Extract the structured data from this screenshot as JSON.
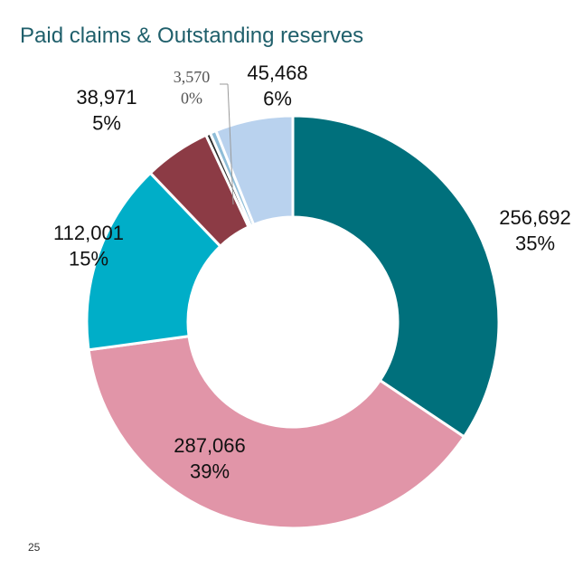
{
  "title": "Paid claims & Outstanding reserves",
  "page_number": "25",
  "chart_data": {
    "type": "pie",
    "donut": true,
    "title": "Paid claims & Outstanding reserves",
    "slices": [
      {
        "value_label": "256,692",
        "percent_label": "35%",
        "value": 256692,
        "color": "#00707c"
      },
      {
        "value_label": "287,066",
        "percent_label": "39%",
        "value": 287066,
        "color": "#e195a8"
      },
      {
        "value_label": "112,001",
        "percent_label": "15%",
        "value": 112001,
        "color": "#00aec8"
      },
      {
        "value_label": "38,971",
        "percent_label": "5%",
        "value": 38971,
        "color": "#8c3b45"
      },
      {
        "value_label": "",
        "percent_label": "",
        "value": 2700,
        "color": "#2b2b2b"
      },
      {
        "value_label": "3,570",
        "percent_label": "0%",
        "value": 3570,
        "color": "#8fbdd8"
      },
      {
        "value_label": "45,468",
        "percent_label": "6%",
        "value": 45468,
        "color": "#b9d2ee"
      }
    ]
  }
}
